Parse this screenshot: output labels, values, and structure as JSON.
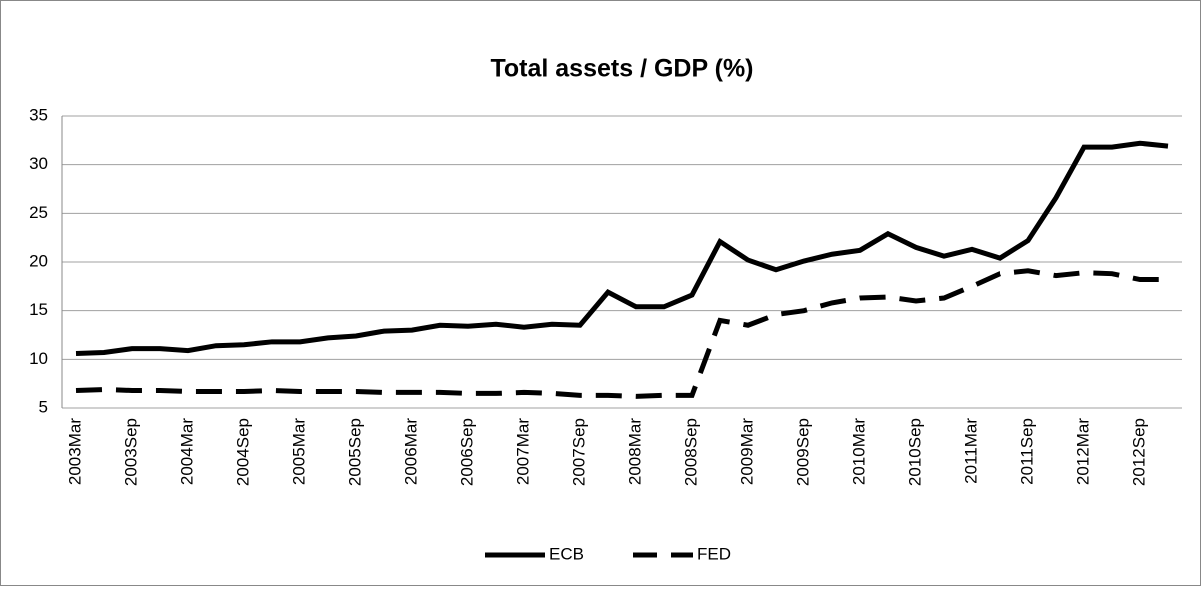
{
  "chart_data": {
    "type": "line",
    "title": "Total assets / GDP (%)",
    "categories": [
      "2003Mar",
      null,
      "2003Sep",
      null,
      "2004Mar",
      null,
      "2004Sep",
      null,
      "2005Mar",
      null,
      "2005Sep",
      null,
      "2006Mar",
      null,
      "2006Sep",
      null,
      "2007Mar",
      null,
      "2007Sep",
      null,
      "2008Mar",
      null,
      "2008Sep",
      null,
      "2009Mar",
      null,
      "2009Sep",
      null,
      "2010Mar",
      null,
      "2010Sep",
      null,
      "2011Mar",
      null,
      "2011Sep",
      null,
      "2012Mar",
      null,
      "2012Sep",
      null
    ],
    "series": [
      {
        "name": "ECB",
        "color": "#000000",
        "dash": "solid",
        "values": [
          10.6,
          10.7,
          11.1,
          11.1,
          10.9,
          11.4,
          11.5,
          11.8,
          11.8,
          12.2,
          12.4,
          12.9,
          13.0,
          13.5,
          13.4,
          13.6,
          13.3,
          13.6,
          13.5,
          16.9,
          15.4,
          15.4,
          16.6,
          22.1,
          20.2,
          19.2,
          20.1,
          20.8,
          21.2,
          22.9,
          21.5,
          20.6,
          21.3,
          20.4,
          22.2,
          26.6,
          31.8,
          31.8,
          32.2,
          31.9
        ]
      },
      {
        "name": "FED",
        "color": "#000000",
        "dash": "dashed",
        "values": [
          6.8,
          6.9,
          6.8,
          6.8,
          6.7,
          6.7,
          6.7,
          6.8,
          6.7,
          6.7,
          6.7,
          6.6,
          6.6,
          6.6,
          6.5,
          6.5,
          6.6,
          6.5,
          6.3,
          6.3,
          6.2,
          6.3,
          6.3,
          14.0,
          13.5,
          14.6,
          15.0,
          15.8,
          16.3,
          16.4,
          16.0,
          16.3,
          17.5,
          18.8,
          19.1,
          18.6,
          18.9,
          18.8,
          18.2,
          18.2
        ]
      }
    ],
    "ylim": [
      5,
      35
    ],
    "yticks": [
      5,
      10,
      15,
      20,
      25,
      30,
      35
    ],
    "grid": true,
    "legend": "bottom"
  }
}
